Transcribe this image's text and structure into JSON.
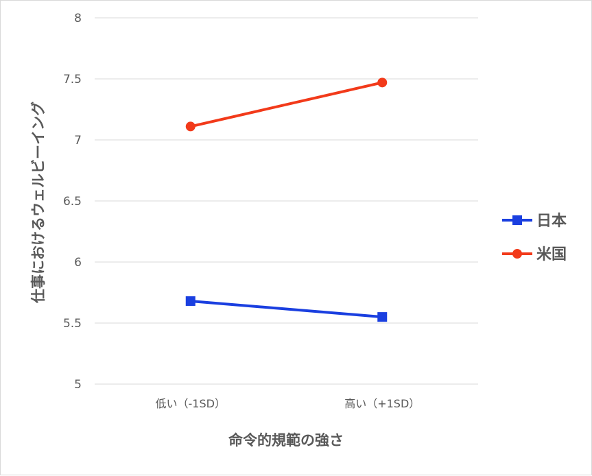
{
  "chart_data": {
    "type": "line",
    "categories": [
      "低い（-1SD）",
      "高い（+1SD）"
    ],
    "series": [
      {
        "name": "日本",
        "values": [
          5.68,
          5.55
        ],
        "color": "#1a3fe0",
        "marker": "square"
      },
      {
        "name": "米国",
        "values": [
          7.11,
          7.47
        ],
        "color": "#f23a1a",
        "marker": "circle"
      }
    ],
    "xlabel": "命令的規範の強さ",
    "ylabel": "仕事におけるウェルビーイング",
    "ylim": [
      5,
      8
    ],
    "yticks": [
      "5",
      "5.5",
      "6",
      "6.5",
      "7",
      "7.5",
      "8"
    ],
    "grid": true,
    "legend": "right"
  }
}
